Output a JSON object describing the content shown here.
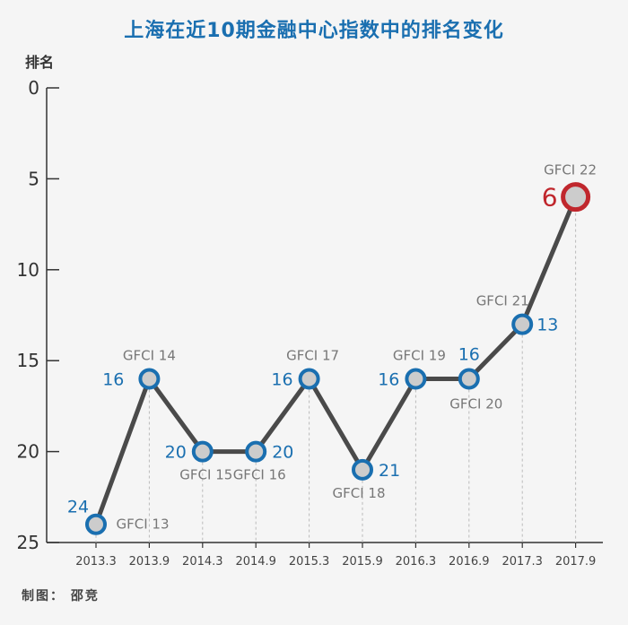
{
  "chart_data": {
    "type": "line",
    "title": "上海在近10期金融中心指数中的排名变化",
    "ylabel": "排名",
    "xlabel": "",
    "ylim": [
      0,
      25
    ],
    "y_inverted": true,
    "yticks": [
      "0",
      "5",
      "10",
      "15",
      "20",
      "25"
    ],
    "ytick_values": [
      0,
      5,
      10,
      15,
      20,
      25
    ],
    "categories": [
      "2013.3",
      "2013.9",
      "2014.3",
      "2014.9",
      "2015.3",
      "2015.9",
      "2016.3",
      "2016.9",
      "2017.3",
      "2017.9"
    ],
    "series": [
      {
        "name": "排名",
        "values": [
          24,
          16,
          20,
          20,
          16,
          21,
          16,
          16,
          13,
          6
        ],
        "value_labels": [
          "24",
          "16",
          "20",
          "20",
          "16",
          "21",
          "16",
          "16",
          "13",
          "6"
        ],
        "annotations": [
          "GFCI 13",
          "GFCI 14",
          "GFCI 15",
          "GFCI 16",
          "GFCI 17",
          "GFCI 18",
          "GFCI 19",
          "GFCI 20",
          "GFCI 21",
          "GFCI 22"
        ]
      }
    ],
    "highlight_index": 9,
    "colors": {
      "line": "#4a4a4a",
      "marker_stroke": "#1a6fb0",
      "marker_fill": "#cccccc",
      "highlight": "#c0272d",
      "value_text": "#1a6fb0",
      "annotation_text": "#777777"
    }
  },
  "credit": "制图： 邵竞"
}
